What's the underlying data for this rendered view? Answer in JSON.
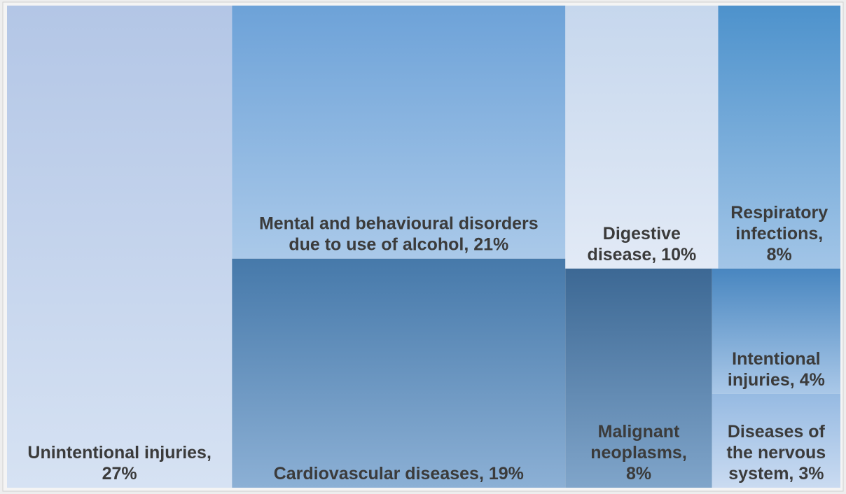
{
  "chart_data": {
    "type": "treemap",
    "labels": [
      [
        "Unintentional injuries,",
        "27%"
      ],
      [
        "Mental and behavioural disorders",
        "due to use of alcohol, 21%"
      ],
      [
        "Cardiovascular diseases, 19%"
      ],
      [
        "Digestive",
        "disease, 10%"
      ],
      [
        "Respiratory",
        "infections,",
        "8%"
      ],
      [
        "Malignant",
        "neoplasms,",
        "8%"
      ],
      [
        "Intentional",
        "injuries, 4%"
      ],
      [
        "Diseases of",
        "the nervous",
        "system, 3%"
      ]
    ],
    "values": [
      27,
      21,
      19,
      10,
      8,
      8,
      4,
      3
    ],
    "colors": [
      [
        "#b3c6e6",
        "#d6e2f3"
      ],
      [
        "#6da2d8",
        "#aac9e9"
      ],
      [
        "#4679aa",
        "#8cb0d5"
      ],
      [
        "#c6d7ed",
        "#e2eaf6"
      ],
      [
        "#4d92cc",
        "#a2c5e7"
      ],
      [
        "#3c6894",
        "#80a5ca"
      ],
      [
        "#4886c0",
        "#aac8e8"
      ],
      [
        "#96bae2",
        "#cadbf1"
      ]
    ]
  }
}
